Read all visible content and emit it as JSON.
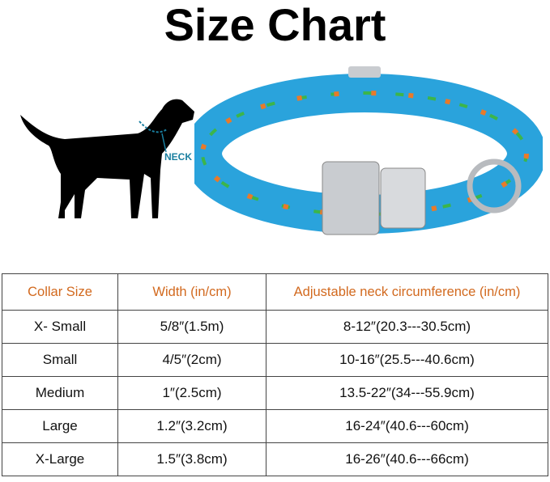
{
  "title": "Size Chart",
  "illustration": {
    "neck_label": "NECK"
  },
  "table": {
    "headers": [
      "Collar Size",
      "Width (in/cm)",
      "Adjustable neck circumference (in/cm)"
    ],
    "rows": [
      [
        "X- Small",
        "5/8″(1.5m)",
        "8-12″(20.3---30.5cm)"
      ],
      [
        "Small",
        "4/5″(2cm)",
        "10-16″(25.5---40.6cm)"
      ],
      [
        "Medium",
        "1″(2.5cm)",
        "13.5-22″(34---55.9cm)"
      ],
      [
        "Large",
        "1.2″(3.2cm)",
        "16-24″(40.6---60cm)"
      ],
      [
        "X-Large",
        "1.5″(3.8cm)",
        "16-26″(40.6---66cm)"
      ]
    ]
  },
  "colors": {
    "header_text": "#d2691e",
    "collar_blue": "#2aa3dc",
    "neck_line": "#1a7fa0"
  }
}
